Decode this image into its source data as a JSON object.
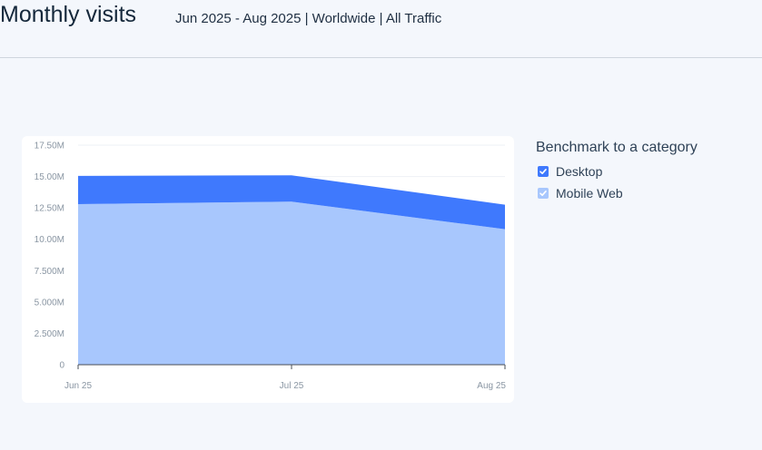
{
  "header": {
    "title": "Monthly visits",
    "subtitle": "Jun 2025 - Aug 2025 | Worldwide | All Traffic"
  },
  "legend": {
    "title": "Benchmark to a category",
    "items": [
      {
        "label": "Desktop",
        "color": "#3f79fd",
        "checked": true
      },
      {
        "label": "Mobile Web",
        "color": "#a8c7fd",
        "checked": true
      }
    ]
  },
  "chart_data": {
    "type": "area",
    "stacked": true,
    "categories": [
      "Jun 25",
      "Jul 25",
      "Aug 25"
    ],
    "series": [
      {
        "name": "Mobile Web",
        "values": [
          12800000,
          13000000,
          10800000
        ],
        "color": "#a8c7fd"
      },
      {
        "name": "Desktop",
        "values": [
          2250000,
          2100000,
          1950000
        ],
        "color": "#3f79fd"
      }
    ],
    "ylim": [
      0,
      17500000
    ],
    "yticks": [
      {
        "value": 0,
        "label": "0"
      },
      {
        "value": 2500000,
        "label": "2.500M"
      },
      {
        "value": 5000000,
        "label": "5.000M"
      },
      {
        "value": 7500000,
        "label": "7.500M"
      },
      {
        "value": 10000000,
        "label": "10.00M"
      },
      {
        "value": 12500000,
        "label": "12.50M"
      },
      {
        "value": 15000000,
        "label": "15.00M"
      },
      {
        "value": 17500000,
        "label": "17.50M"
      }
    ],
    "grid": true,
    "legend_position": "right"
  }
}
